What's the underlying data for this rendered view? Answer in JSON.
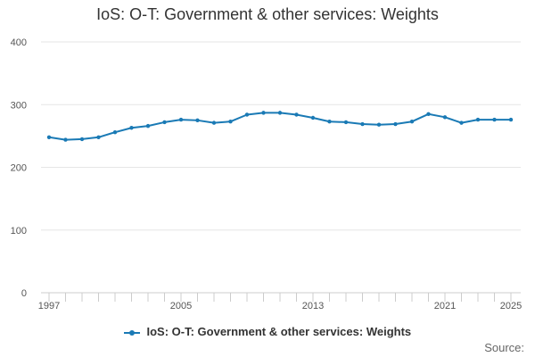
{
  "chart_data": {
    "type": "line",
    "title": "IoS: O-T: Government & other services: Weights",
    "xlabel": "",
    "ylabel": "",
    "x": [
      1997,
      1998,
      1999,
      2000,
      2001,
      2002,
      2003,
      2004,
      2005,
      2006,
      2007,
      2008,
      2009,
      2010,
      2011,
      2012,
      2013,
      2014,
      2015,
      2016,
      2017,
      2018,
      2019,
      2020,
      2021,
      2022,
      2023,
      2024,
      2025
    ],
    "series": [
      {
        "name": "IoS: O-T: Government & other services: Weights",
        "values": [
          248,
          244,
          245,
          248,
          256,
          263,
          266,
          272,
          276,
          275,
          271,
          273,
          284,
          287,
          287,
          284,
          279,
          273,
          272,
          269,
          268,
          269,
          273,
          285,
          280,
          271,
          276,
          276,
          276
        ]
      }
    ],
    "xticks": [
      "1997",
      "2005",
      "2013",
      "2021",
      "2025"
    ],
    "yticks": [
      "0",
      "100",
      "200",
      "300",
      "400"
    ],
    "ylim": [
      0,
      400
    ],
    "xlim": [
      1997,
      2025
    ],
    "grid": true,
    "legend": "bottom-center",
    "color": "#1a7ab5"
  },
  "source_label": "Source:"
}
